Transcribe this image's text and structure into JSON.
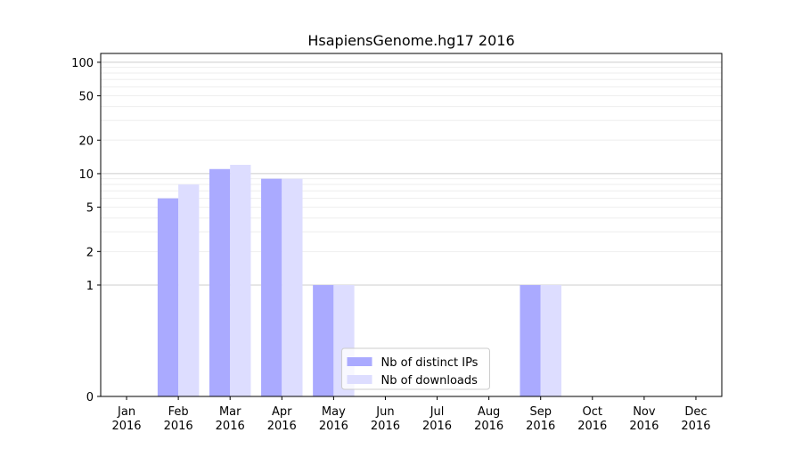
{
  "chart_data": {
    "type": "bar",
    "title": "HsapiensGenome.hg17 2016",
    "categories": [
      [
        "Jan",
        "2016"
      ],
      [
        "Feb",
        "2016"
      ],
      [
        "Mar",
        "2016"
      ],
      [
        "Apr",
        "2016"
      ],
      [
        "May",
        "2016"
      ],
      [
        "Jun",
        "2016"
      ],
      [
        "Jul",
        "2016"
      ],
      [
        "Aug",
        "2016"
      ],
      [
        "Sep",
        "2016"
      ],
      [
        "Oct",
        "2016"
      ],
      [
        "Nov",
        "2016"
      ],
      [
        "Dec",
        "2016"
      ]
    ],
    "series": [
      {
        "name": "Nb of distinct IPs",
        "color": "#aaaaff",
        "values": [
          0,
          6,
          11,
          9,
          1,
          0,
          0,
          0,
          1,
          0,
          0,
          0
        ]
      },
      {
        "name": "Nb of downloads",
        "color": "#ddddff",
        "values": [
          0,
          8,
          12,
          9,
          1,
          0,
          0,
          0,
          1,
          0,
          0,
          0
        ]
      }
    ],
    "yscale": "symlog",
    "ylim": [
      0,
      120
    ],
    "yticks": [
      0,
      1,
      2,
      5,
      10,
      20,
      50,
      100
    ],
    "major_gridlines": [
      1,
      10,
      100
    ],
    "grid": true,
    "legend_position": "lower center"
  }
}
